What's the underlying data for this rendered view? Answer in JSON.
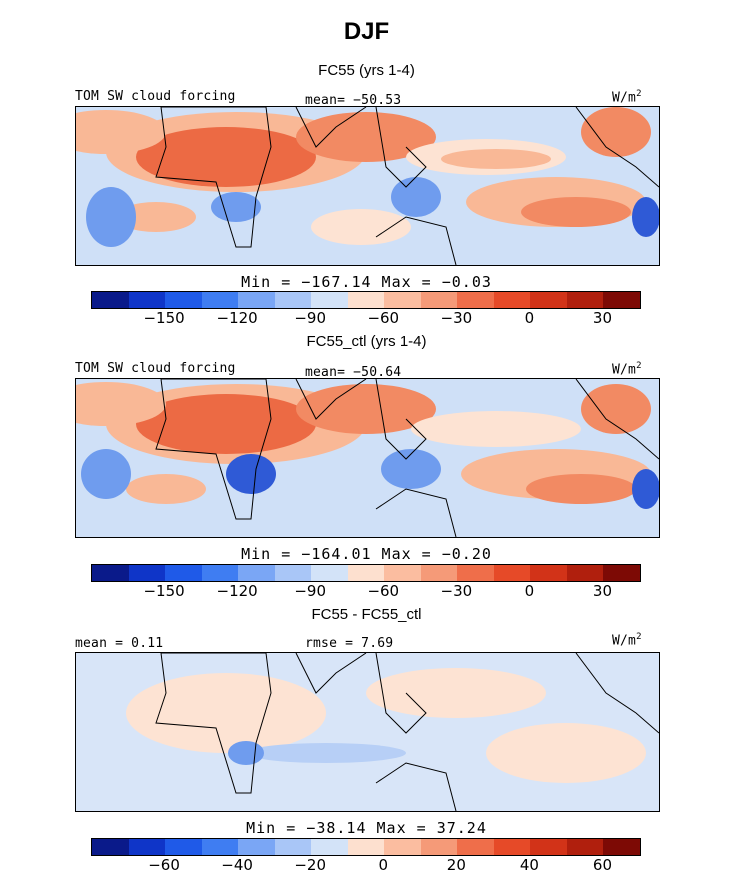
{
  "figure": {
    "title": "DJF"
  },
  "panels": [
    {
      "title": "FC55 (yrs 1-4)",
      "left_label": "TOM SW cloud forcing",
      "center_label": "mean= −50.53",
      "right_label": "W/m",
      "right_label_sup": "2",
      "minmax": "Min = −167.14 Max =  −0.03",
      "tick_labels": [
        "−150",
        "−120",
        "−90",
        "−60",
        "−30",
        "0",
        "30"
      ]
    },
    {
      "title": "FC55_ctl (yrs 1-4)",
      "left_label": "TOM SW cloud forcing",
      "center_label": "mean= −50.64",
      "right_label": "W/m",
      "right_label_sup": "2",
      "minmax": "Min = −164.01 Max =  −0.20",
      "tick_labels": [
        "−150",
        "−120",
        "−90",
        "−60",
        "−30",
        "0",
        "30"
      ]
    },
    {
      "title": "FC55 - FC55_ctl",
      "left_label": "mean =   0.11",
      "center_label": "rmse =   7.69",
      "right_label": "W/m",
      "right_label_sup": "2",
      "minmax": "Min = −38.14 Max =  37.24",
      "tick_labels": [
        "−60",
        "−40",
        "−20",
        "0",
        "20",
        "40",
        "60"
      ]
    }
  ],
  "colorbar": {
    "colors": [
      "#0a1a8a",
      "#0f35c8",
      "#1f5ae8",
      "#3f7df2",
      "#7aa6f5",
      "#a9c6f7",
      "#d3e3f8",
      "#fde0cf",
      "#fbbda0",
      "#f59a78",
      "#ef6e4a",
      "#e64a28",
      "#d23318",
      "#b01f0d",
      "#7d0a05"
    ]
  },
  "map_colors": {
    "deep_blue": "#2f5ad6",
    "blue": "#6f9cee",
    "light_blue": "#b7cff6",
    "pale_blue": "#d8e5f8",
    "pale_orange": "#fde3d3",
    "light_orange": "#f9b896",
    "orange": "#f28a63",
    "red_orange": "#ec6a44"
  }
}
